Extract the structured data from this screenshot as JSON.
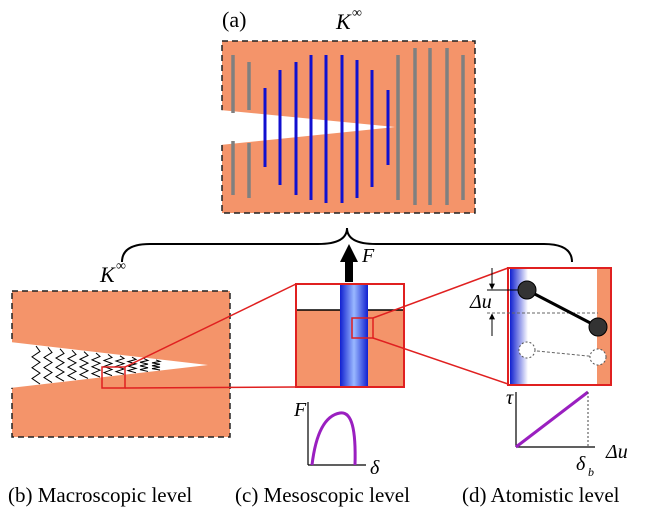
{
  "panel_a": {
    "label": "(a)",
    "symbol": "K",
    "symbol_sup": "∞"
  },
  "panel_b": {
    "symbol": "K",
    "symbol_sup": "∞",
    "caption": "(b) Macroscopic level"
  },
  "panel_c": {
    "force": "F",
    "graph_y": "F",
    "graph_x": "δ",
    "caption": "(c) Mesoscopic level"
  },
  "panel_d": {
    "displacement": "Δu",
    "graph_y": "τ",
    "graph_x": "Δu",
    "graph_mark": "δ",
    "graph_mark_sub": "b",
    "caption": "(d) Atomistic level"
  }
}
